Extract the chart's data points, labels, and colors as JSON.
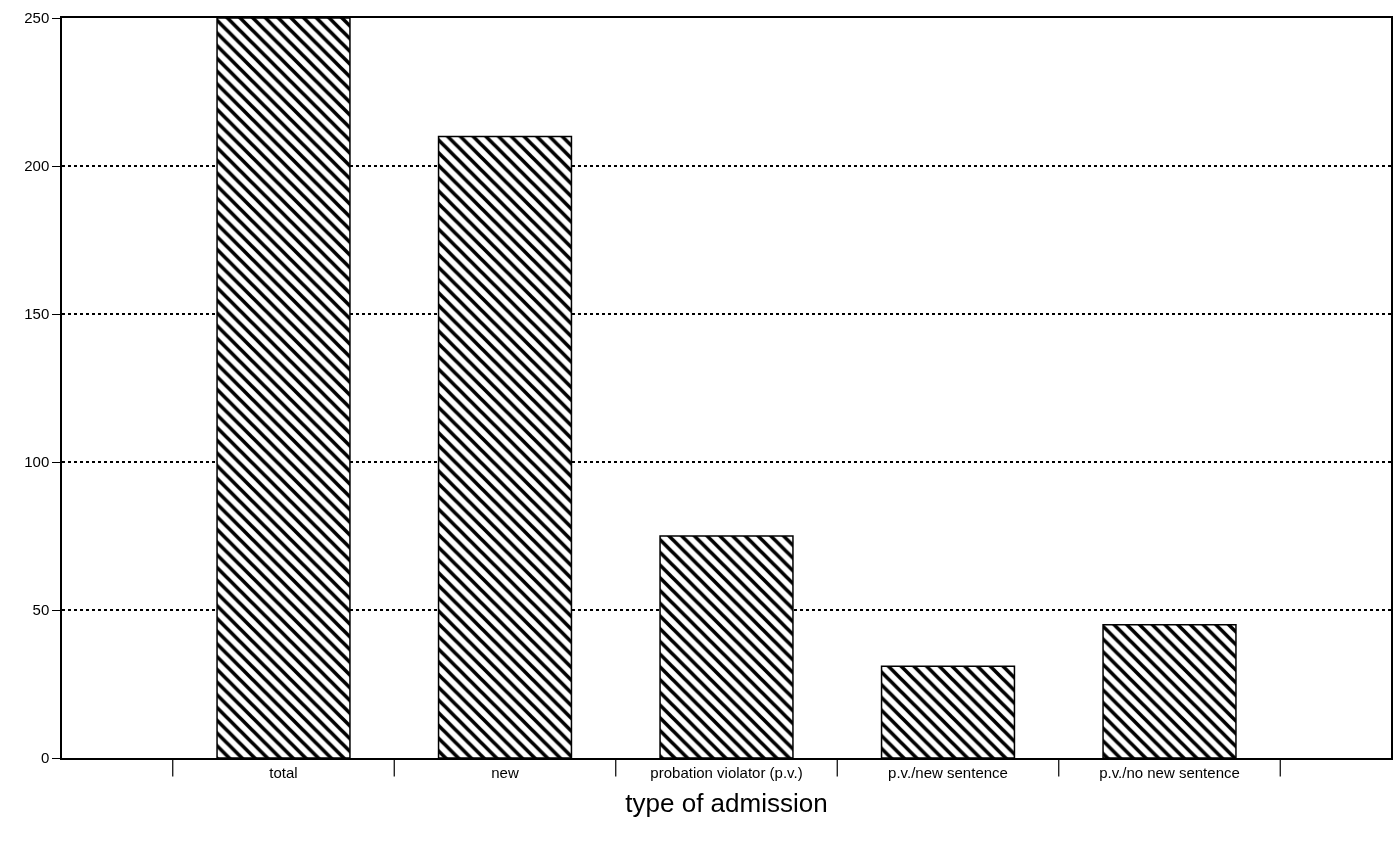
{
  "chart_data": {
    "type": "bar",
    "xlabel": "type of admission",
    "categories": [
      "total",
      "new",
      "probation violator (p.v.)",
      "p.v./new sentence",
      "p.v./no new sentence"
    ],
    "values": [
      250,
      210,
      75,
      31,
      45
    ],
    "color": "#000000",
    "ylim": [
      0,
      250
    ],
    "yticks": [
      0,
      50,
      100,
      150,
      200,
      250
    ],
    "grid": "y",
    "legend": false
  }
}
